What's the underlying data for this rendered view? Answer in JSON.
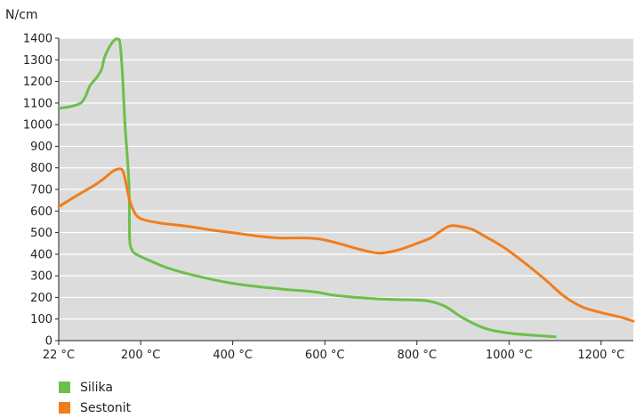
{
  "chart_data": {
    "type": "line",
    "ylabel": "N/cm",
    "ylim": [
      0,
      1400
    ],
    "yticks": [
      0,
      100,
      200,
      300,
      400,
      500,
      600,
      700,
      800,
      900,
      1000,
      1100,
      1200,
      1300,
      1400
    ],
    "xlim": [
      22,
      1270
    ],
    "xticks": [
      {
        "value": 22,
        "label": "22 °C"
      },
      {
        "value": 200,
        "label": "200 °C"
      },
      {
        "value": 400,
        "label": "400 °C"
      },
      {
        "value": 600,
        "label": "600 °C"
      },
      {
        "value": 800,
        "label": "800 °C"
      },
      {
        "value": 1000,
        "label": "1000 °C"
      },
      {
        "value": 1200,
        "label": "1200 °C"
      }
    ],
    "grid": true,
    "legend_position": "bottom-left",
    "background_color": "#dcdcdc",
    "series": [
      {
        "name": "Silika",
        "color": "#6cbf4b",
        "x": [
          22,
          50,
          70,
          80,
          90,
          105,
          115,
          120,
          125,
          135,
          145,
          150,
          155,
          160,
          166,
          171,
          175,
          176,
          180,
          190,
          220,
          260,
          320,
          400,
          500,
          580,
          620,
          700,
          760,
          820,
          860,
          900,
          950,
          1000,
          1050,
          1100
        ],
        "y": [
          1075,
          1085,
          1100,
          1130,
          1180,
          1220,
          1255,
          1300,
          1330,
          1370,
          1395,
          1395,
          1380,
          1250,
          1000,
          850,
          700,
          480,
          425,
          400,
          370,
          335,
          300,
          265,
          240,
          225,
          210,
          195,
          190,
          185,
          160,
          105,
          55,
          35,
          25,
          18
        ]
      },
      {
        "name": "Sestonit",
        "color": "#f07d1e",
        "x": [
          22,
          60,
          100,
          120,
          140,
          153,
          160,
          165,
          175,
          185,
          200,
          240,
          300,
          360,
          400,
          450,
          500,
          550,
          590,
          630,
          680,
          720,
          760,
          800,
          830,
          850,
          870,
          890,
          920,
          950,
          990,
          1040,
          1080,
          1120,
          1160,
          1200,
          1240,
          1270
        ],
        "y": [
          620,
          670,
          720,
          750,
          785,
          795,
          790,
          760,
          660,
          600,
          565,
          545,
          530,
          510,
          500,
          485,
          475,
          475,
          470,
          450,
          420,
          405,
          420,
          450,
          475,
          505,
          530,
          530,
          515,
          480,
          430,
          350,
          280,
          205,
          155,
          130,
          110,
          90
        ]
      }
    ]
  }
}
